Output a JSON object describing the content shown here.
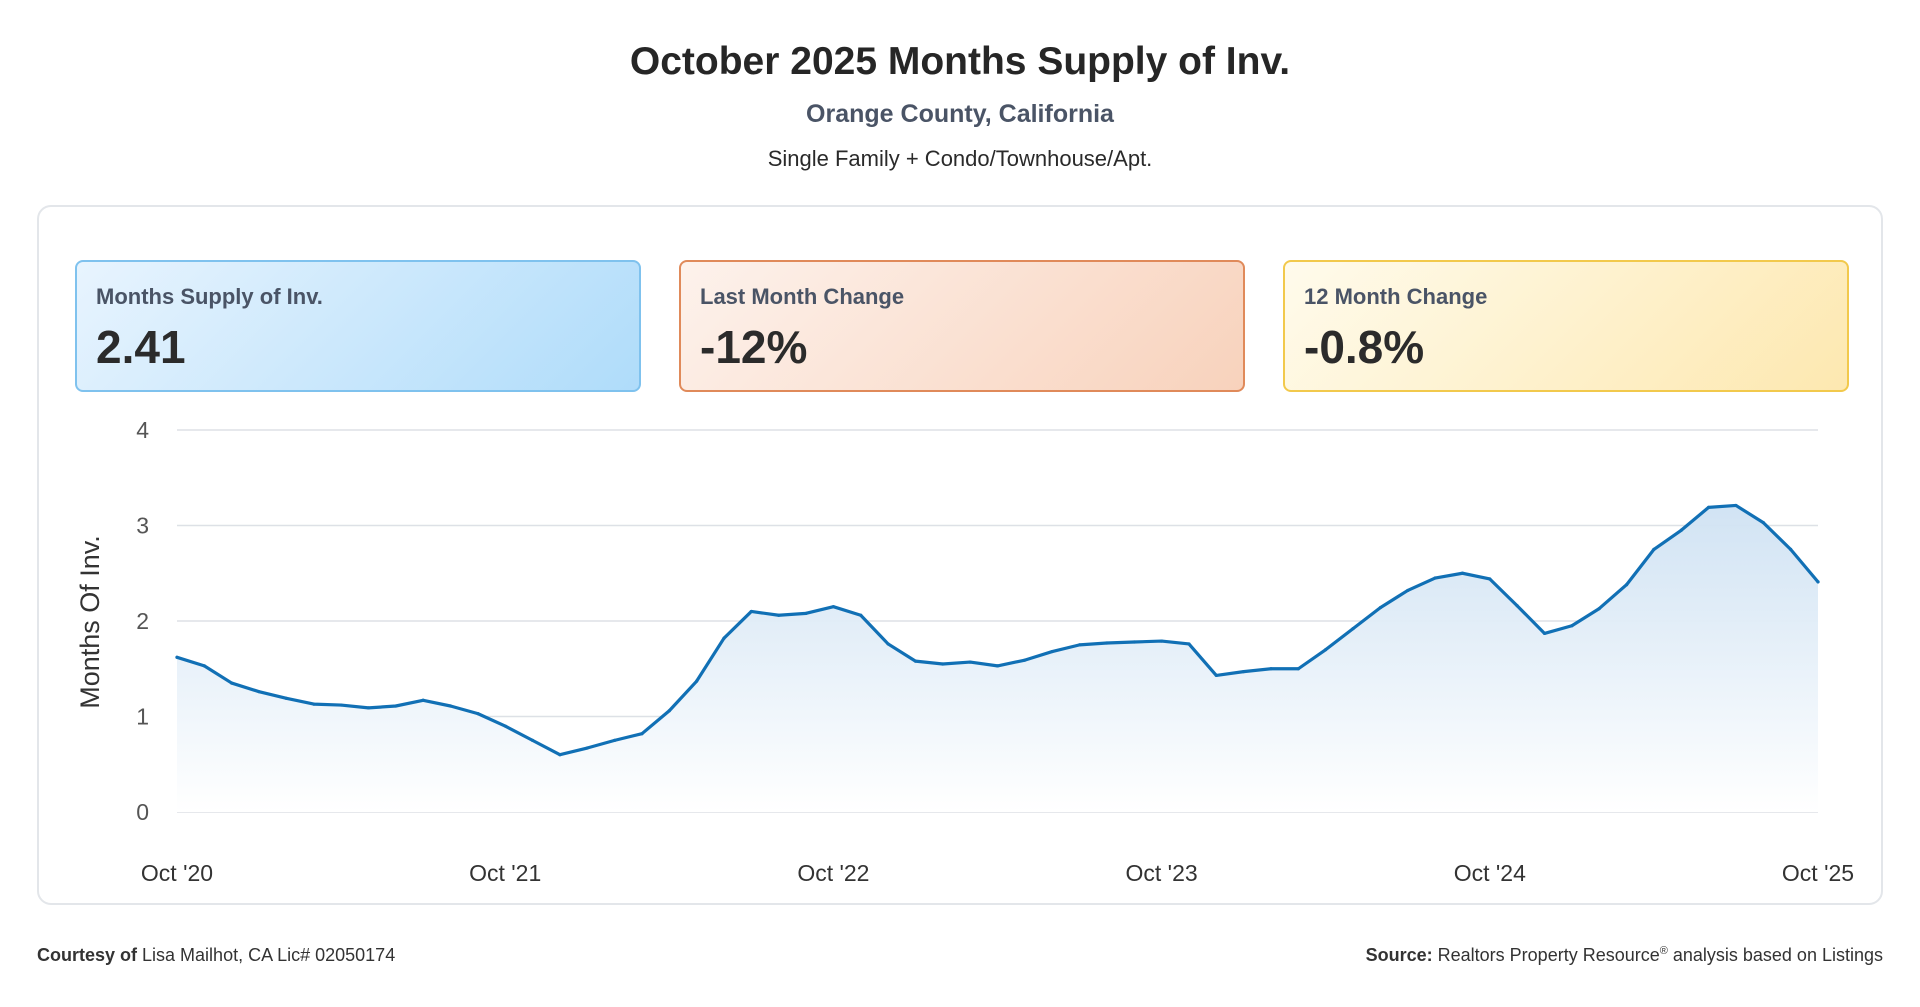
{
  "header": {
    "title": "October 2025 Months Supply of Inv.",
    "subtitle": "Orange County, California",
    "property_types": "Single Family + Condo/Townhouse/Apt."
  },
  "stats": [
    {
      "label": "Months Supply of Inv.",
      "value": "2.41"
    },
    {
      "label": "Last Month Change",
      "value": "-12%"
    },
    {
      "label": "12 Month Change",
      "value": "-0.8%"
    }
  ],
  "footer": {
    "courtesy_label": "Courtesy of",
    "courtesy_text": "Lisa Mailhot, CA Lic# 02050174",
    "source_label": "Source:",
    "source_text": "Realtors Property Resource",
    "source_mark": "®",
    "source_suffix": "analysis based on Listings"
  },
  "colors": {
    "line": "#1170b5",
    "area_top": "#cfe2f3",
    "grid": "#dde1e6",
    "card1_border": "#7fc2ee",
    "card2_border": "#e08a5a",
    "card3_border": "#f2c94c"
  },
  "chart_data": {
    "type": "area",
    "title": "",
    "xlabel": "",
    "ylabel": "Months Of Inv.",
    "ylim": [
      0,
      4
    ],
    "yticks": [
      0,
      1,
      2,
      3,
      4
    ],
    "grid": true,
    "xtick_labels": [
      "Oct '20",
      "Oct '21",
      "Oct '22",
      "Oct '23",
      "Oct '24",
      "Oct '25"
    ],
    "x": [
      "Oct '20",
      "Nov '20",
      "Dec '20",
      "Jan '21",
      "Feb '21",
      "Mar '21",
      "Apr '21",
      "May '21",
      "Jun '21",
      "Jul '21",
      "Aug '21",
      "Sep '21",
      "Oct '21",
      "Nov '21",
      "Dec '21",
      "Jan '22",
      "Feb '22",
      "Mar '22",
      "Apr '22",
      "May '22",
      "Jun '22",
      "Jul '22",
      "Aug '22",
      "Sep '22",
      "Oct '22",
      "Nov '22",
      "Dec '22",
      "Jan '23",
      "Feb '23",
      "Mar '23",
      "Apr '23",
      "May '23",
      "Jun '23",
      "Jul '23",
      "Aug '23",
      "Sep '23",
      "Oct '23",
      "Nov '23",
      "Dec '23",
      "Jan '24",
      "Feb '24",
      "Mar '24",
      "Apr '24",
      "May '24",
      "Jun '24",
      "Jul '24",
      "Aug '24",
      "Sep '24",
      "Oct '24",
      "Nov '24",
      "Dec '24",
      "Jan '25",
      "Feb '25",
      "Mar '25",
      "Apr '25",
      "May '25",
      "Jun '25",
      "Jul '25",
      "Aug '25",
      "Sep '25",
      "Oct '25"
    ],
    "series": [
      {
        "values": [
          1.62,
          1.53,
          1.35,
          1.26,
          1.19,
          1.13,
          1.12,
          1.09,
          1.11,
          1.17,
          1.11,
          1.03,
          0.9,
          0.75,
          0.6,
          0.67,
          0.75,
          0.82,
          1.06,
          1.37,
          1.82,
          2.1,
          2.06,
          2.08,
          2.15,
          2.06,
          1.76,
          1.58,
          1.55,
          1.57,
          1.53,
          1.59,
          1.68,
          1.75,
          1.77,
          1.78,
          1.79,
          1.76,
          1.43,
          1.47,
          1.5,
          1.5,
          1.7,
          1.92,
          2.14,
          2.32,
          2.45,
          2.5,
          2.44,
          2.16,
          1.87,
          1.95,
          2.13,
          2.38,
          2.75,
          2.95,
          3.19,
          3.21,
          3.03,
          2.75,
          2.41
        ]
      }
    ]
  }
}
